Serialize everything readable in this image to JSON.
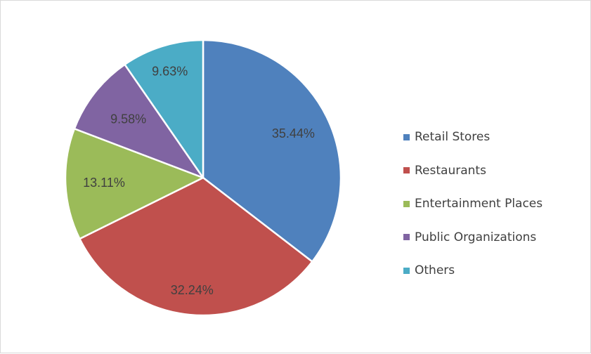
{
  "chart_data": {
    "type": "pie",
    "categories": [
      "Retail Stores",
      "Restaurants",
      "Entertainment Places",
      "Public Organizations",
      "Others"
    ],
    "values": [
      35.44,
      32.24,
      13.11,
      9.58,
      9.63
    ],
    "data_labels": [
      "35.44%",
      "32.24%",
      "13.11%",
      "9.58%",
      "9.63%"
    ],
    "colors": [
      "#4f81bd",
      "#c0504d",
      "#9bbb59",
      "#8064a2",
      "#4bacc6"
    ],
    "start_angle": "12 o'clock",
    "direction": "clockwise",
    "legend_placement": "right",
    "title": ""
  }
}
